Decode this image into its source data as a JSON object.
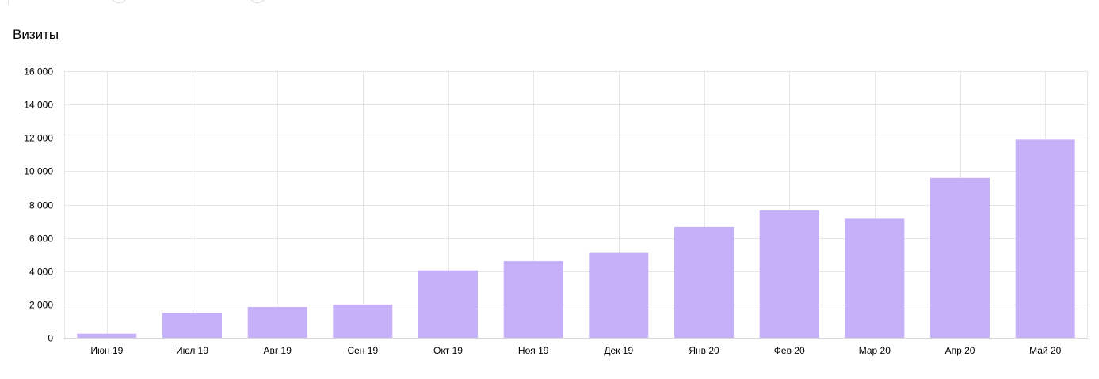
{
  "chart_data": {
    "type": "bar",
    "title": "Визиты",
    "xlabel": "",
    "ylabel": "",
    "categories": [
      "Июн 19",
      "Июл 19",
      "Авг 19",
      "Сен 19",
      "Окт 19",
      "Ноя 19",
      "Дек 19",
      "Янв 20",
      "Фев 20",
      "Мар 20",
      "Апр 20",
      "Май 20"
    ],
    "series": [
      {
        "values": [
          250,
          1500,
          1850,
          2000,
          4050,
          4600,
          5100,
          6650,
          7650,
          7150,
          9600,
          11900
        ]
      }
    ],
    "ylim": [
      0,
      16000
    ],
    "yticks": [
      0,
      2000,
      4000,
      6000,
      8000,
      10000,
      12000,
      14000,
      16000
    ],
    "ytick_labels": [
      "0",
      "2 000",
      "4 000",
      "6 000",
      "8 000",
      "10 000",
      "12 000",
      "14 000",
      "16 000"
    ],
    "grid": true,
    "legend": "none",
    "colors": {
      "bar": "#c5b0f9",
      "grid": "#e6e6e6",
      "axis": "#d9d9d9"
    }
  }
}
